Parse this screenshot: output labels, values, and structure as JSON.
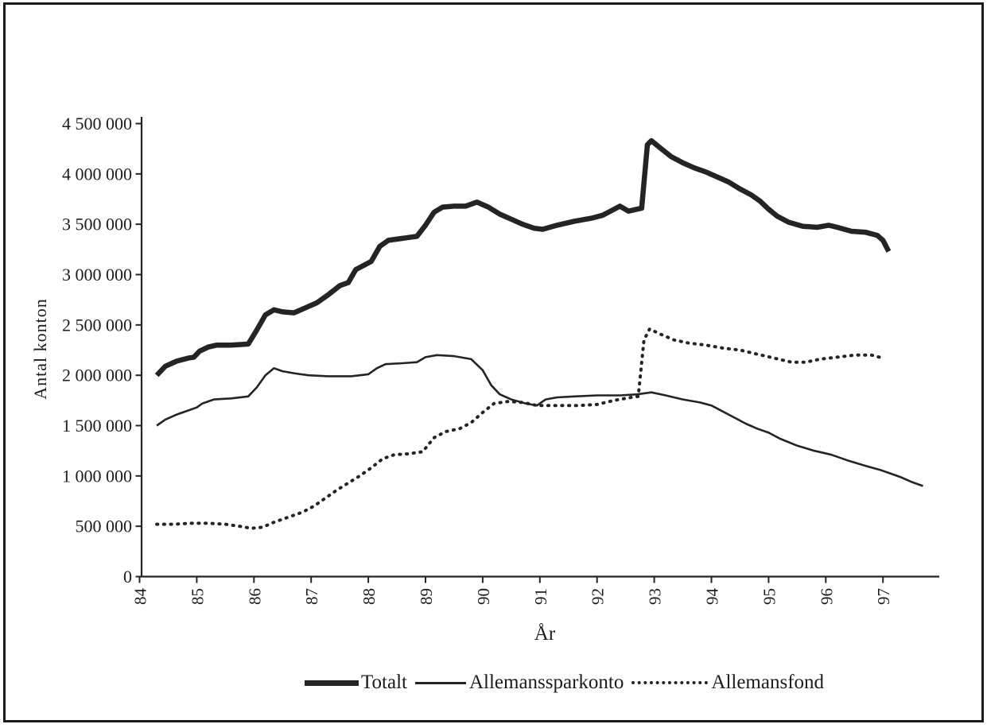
{
  "figure": {
    "background": "#ffffff",
    "frame_color": "#1a1a1a",
    "ink_color": "#242424",
    "text_color": "#1c1c1c"
  },
  "chart_data": {
    "type": "line",
    "title": "",
    "xlabel": "År",
    "ylabel": "Antal konton",
    "grid": false,
    "legend_position": "bottom",
    "x_axis": {
      "min": 84,
      "max": 98,
      "tick_values": [
        84,
        85,
        86,
        87,
        88,
        89,
        90,
        91,
        92,
        93,
        94,
        95,
        96,
        97
      ],
      "tick_labels": [
        "84",
        "85",
        "86",
        "87",
        "88",
        "89",
        "90",
        "91",
        "92",
        "93",
        "94",
        "95",
        "96",
        "97"
      ],
      "label_rotation_deg": -90
    },
    "y_axis": {
      "min": 0,
      "max": 4500000,
      "tick_step": 500000,
      "tick_values": [
        0,
        500000,
        1000000,
        1500000,
        2000000,
        2500000,
        3000000,
        3500000,
        4000000,
        4500000
      ],
      "tick_labels": [
        "0",
        "500 000",
        "1 000 000",
        "1 500 000",
        "2 000 000",
        "2 500 000",
        "3 000 000",
        "3 500 000",
        "4 000 000",
        "4 500 000"
      ]
    },
    "series": [
      {
        "name": "Totalt",
        "style": "thick-solid",
        "points": [
          [
            84.3,
            2000000
          ],
          [
            84.45,
            2090000
          ],
          [
            84.65,
            2140000
          ],
          [
            84.85,
            2170000
          ],
          [
            84.95,
            2180000
          ],
          [
            85.05,
            2240000
          ],
          [
            85.2,
            2280000
          ],
          [
            85.35,
            2300000
          ],
          [
            85.6,
            2300000
          ],
          [
            85.9,
            2310000
          ],
          [
            86.05,
            2450000
          ],
          [
            86.2,
            2600000
          ],
          [
            86.35,
            2650000
          ],
          [
            86.5,
            2630000
          ],
          [
            86.7,
            2620000
          ],
          [
            86.9,
            2670000
          ],
          [
            87.1,
            2720000
          ],
          [
            87.3,
            2800000
          ],
          [
            87.5,
            2890000
          ],
          [
            87.65,
            2920000
          ],
          [
            87.78,
            3050000
          ],
          [
            87.95,
            3100000
          ],
          [
            88.05,
            3130000
          ],
          [
            88.2,
            3280000
          ],
          [
            88.35,
            3340000
          ],
          [
            88.6,
            3360000
          ],
          [
            88.85,
            3380000
          ],
          [
            89.0,
            3490000
          ],
          [
            89.15,
            3620000
          ],
          [
            89.3,
            3670000
          ],
          [
            89.5,
            3680000
          ],
          [
            89.7,
            3680000
          ],
          [
            89.9,
            3720000
          ],
          [
            90.1,
            3670000
          ],
          [
            90.3,
            3600000
          ],
          [
            90.5,
            3550000
          ],
          [
            90.7,
            3500000
          ],
          [
            90.9,
            3460000
          ],
          [
            91.05,
            3450000
          ],
          [
            91.3,
            3490000
          ],
          [
            91.6,
            3530000
          ],
          [
            91.9,
            3560000
          ],
          [
            92.1,
            3590000
          ],
          [
            92.3,
            3650000
          ],
          [
            92.4,
            3680000
          ],
          [
            92.55,
            3630000
          ],
          [
            92.7,
            3650000
          ],
          [
            92.78,
            3660000
          ],
          [
            92.88,
            4290000
          ],
          [
            92.95,
            4330000
          ],
          [
            93.1,
            4260000
          ],
          [
            93.3,
            4170000
          ],
          [
            93.5,
            4110000
          ],
          [
            93.7,
            4060000
          ],
          [
            93.9,
            4020000
          ],
          [
            94.1,
            3970000
          ],
          [
            94.3,
            3920000
          ],
          [
            94.5,
            3850000
          ],
          [
            94.7,
            3790000
          ],
          [
            94.85,
            3730000
          ],
          [
            95.0,
            3650000
          ],
          [
            95.15,
            3580000
          ],
          [
            95.35,
            3520000
          ],
          [
            95.6,
            3480000
          ],
          [
            95.85,
            3470000
          ],
          [
            96.05,
            3490000
          ],
          [
            96.2,
            3470000
          ],
          [
            96.45,
            3430000
          ],
          [
            96.7,
            3420000
          ],
          [
            96.9,
            3390000
          ],
          [
            97.0,
            3340000
          ],
          [
            97.1,
            3230000
          ]
        ]
      },
      {
        "name": "Allemanssparkonto",
        "style": "thin-solid",
        "points": [
          [
            84.3,
            1500000
          ],
          [
            84.45,
            1560000
          ],
          [
            84.65,
            1610000
          ],
          [
            84.85,
            1650000
          ],
          [
            85.0,
            1680000
          ],
          [
            85.1,
            1720000
          ],
          [
            85.3,
            1760000
          ],
          [
            85.6,
            1770000
          ],
          [
            85.9,
            1790000
          ],
          [
            86.05,
            1880000
          ],
          [
            86.2,
            2000000
          ],
          [
            86.35,
            2070000
          ],
          [
            86.5,
            2040000
          ],
          [
            86.7,
            2020000
          ],
          [
            86.95,
            2000000
          ],
          [
            87.3,
            1990000
          ],
          [
            87.7,
            1990000
          ],
          [
            88.0,
            2010000
          ],
          [
            88.15,
            2070000
          ],
          [
            88.3,
            2110000
          ],
          [
            88.6,
            2120000
          ],
          [
            88.85,
            2130000
          ],
          [
            89.0,
            2180000
          ],
          [
            89.2,
            2200000
          ],
          [
            89.5,
            2190000
          ],
          [
            89.8,
            2160000
          ],
          [
            90.0,
            2050000
          ],
          [
            90.15,
            1900000
          ],
          [
            90.3,
            1810000
          ],
          [
            90.5,
            1760000
          ],
          [
            90.75,
            1720000
          ],
          [
            90.95,
            1700000
          ],
          [
            91.1,
            1760000
          ],
          [
            91.3,
            1780000
          ],
          [
            91.6,
            1790000
          ],
          [
            92.0,
            1800000
          ],
          [
            92.4,
            1800000
          ],
          [
            92.7,
            1810000
          ],
          [
            92.95,
            1830000
          ],
          [
            93.2,
            1800000
          ],
          [
            93.5,
            1760000
          ],
          [
            93.8,
            1730000
          ],
          [
            94.0,
            1700000
          ],
          [
            94.2,
            1640000
          ],
          [
            94.4,
            1580000
          ],
          [
            94.6,
            1520000
          ],
          [
            94.8,
            1470000
          ],
          [
            95.0,
            1430000
          ],
          [
            95.2,
            1370000
          ],
          [
            95.5,
            1300000
          ],
          [
            95.8,
            1250000
          ],
          [
            96.1,
            1210000
          ],
          [
            96.4,
            1150000
          ],
          [
            96.7,
            1100000
          ],
          [
            96.95,
            1060000
          ],
          [
            97.1,
            1030000
          ],
          [
            97.3,
            990000
          ],
          [
            97.5,
            940000
          ],
          [
            97.7,
            900000
          ]
        ]
      },
      {
        "name": "Allemansfond",
        "style": "dotted",
        "points": [
          [
            84.3,
            520000
          ],
          [
            84.6,
            520000
          ],
          [
            84.9,
            530000
          ],
          [
            85.2,
            530000
          ],
          [
            85.5,
            520000
          ],
          [
            85.75,
            500000
          ],
          [
            85.95,
            480000
          ],
          [
            86.15,
            490000
          ],
          [
            86.35,
            540000
          ],
          [
            86.6,
            590000
          ],
          [
            86.85,
            640000
          ],
          [
            87.05,
            700000
          ],
          [
            87.25,
            780000
          ],
          [
            87.45,
            860000
          ],
          [
            87.65,
            930000
          ],
          [
            87.85,
            1000000
          ],
          [
            88.05,
            1080000
          ],
          [
            88.25,
            1170000
          ],
          [
            88.45,
            1210000
          ],
          [
            88.7,
            1220000
          ],
          [
            88.95,
            1240000
          ],
          [
            89.15,
            1380000
          ],
          [
            89.35,
            1440000
          ],
          [
            89.6,
            1470000
          ],
          [
            89.8,
            1530000
          ],
          [
            90.0,
            1630000
          ],
          [
            90.2,
            1720000
          ],
          [
            90.45,
            1740000
          ],
          [
            90.7,
            1730000
          ],
          [
            90.95,
            1700000
          ],
          [
            91.3,
            1700000
          ],
          [
            91.7,
            1700000
          ],
          [
            92.0,
            1710000
          ],
          [
            92.3,
            1750000
          ],
          [
            92.6,
            1780000
          ],
          [
            92.72,
            1790000
          ],
          [
            92.82,
            2350000
          ],
          [
            92.92,
            2460000
          ],
          [
            93.1,
            2410000
          ],
          [
            93.35,
            2350000
          ],
          [
            93.6,
            2320000
          ],
          [
            93.9,
            2300000
          ],
          [
            94.2,
            2270000
          ],
          [
            94.5,
            2250000
          ],
          [
            94.8,
            2210000
          ],
          [
            95.1,
            2170000
          ],
          [
            95.4,
            2130000
          ],
          [
            95.65,
            2130000
          ],
          [
            95.9,
            2160000
          ],
          [
            96.2,
            2180000
          ],
          [
            96.5,
            2200000
          ],
          [
            96.8,
            2200000
          ],
          [
            97.0,
            2170000
          ]
        ]
      }
    ]
  }
}
